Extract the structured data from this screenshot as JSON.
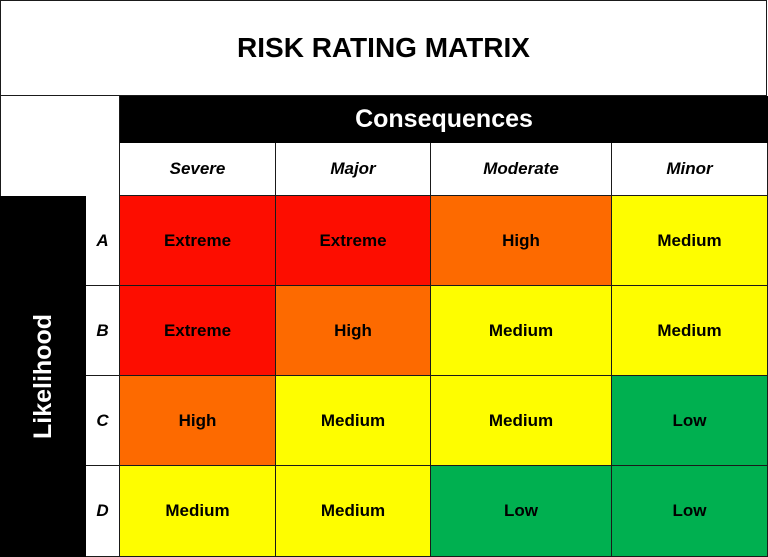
{
  "title": "RISK RATING MATRIX",
  "consequences_label": "Consequences",
  "likelihood_label": "Likelihood",
  "columns": [
    "Severe",
    "Major",
    "Moderate",
    "Minor"
  ],
  "rows": [
    {
      "label": "A",
      "ratings": [
        "Extreme",
        "Extreme",
        "High",
        "Medium"
      ]
    },
    {
      "label": "B",
      "ratings": [
        "Extreme",
        "High",
        "Medium",
        "Medium"
      ]
    },
    {
      "label": "C",
      "ratings": [
        "High",
        "Medium",
        "Medium",
        "Low"
      ]
    },
    {
      "label": "D",
      "ratings": [
        "Medium",
        "Medium",
        "Low",
        "Low"
      ]
    }
  ],
  "colors": {
    "Extreme": "#fd0d00",
    "High": "#fd6a00",
    "Medium": "#fefd00",
    "Low": "#00b050"
  }
}
